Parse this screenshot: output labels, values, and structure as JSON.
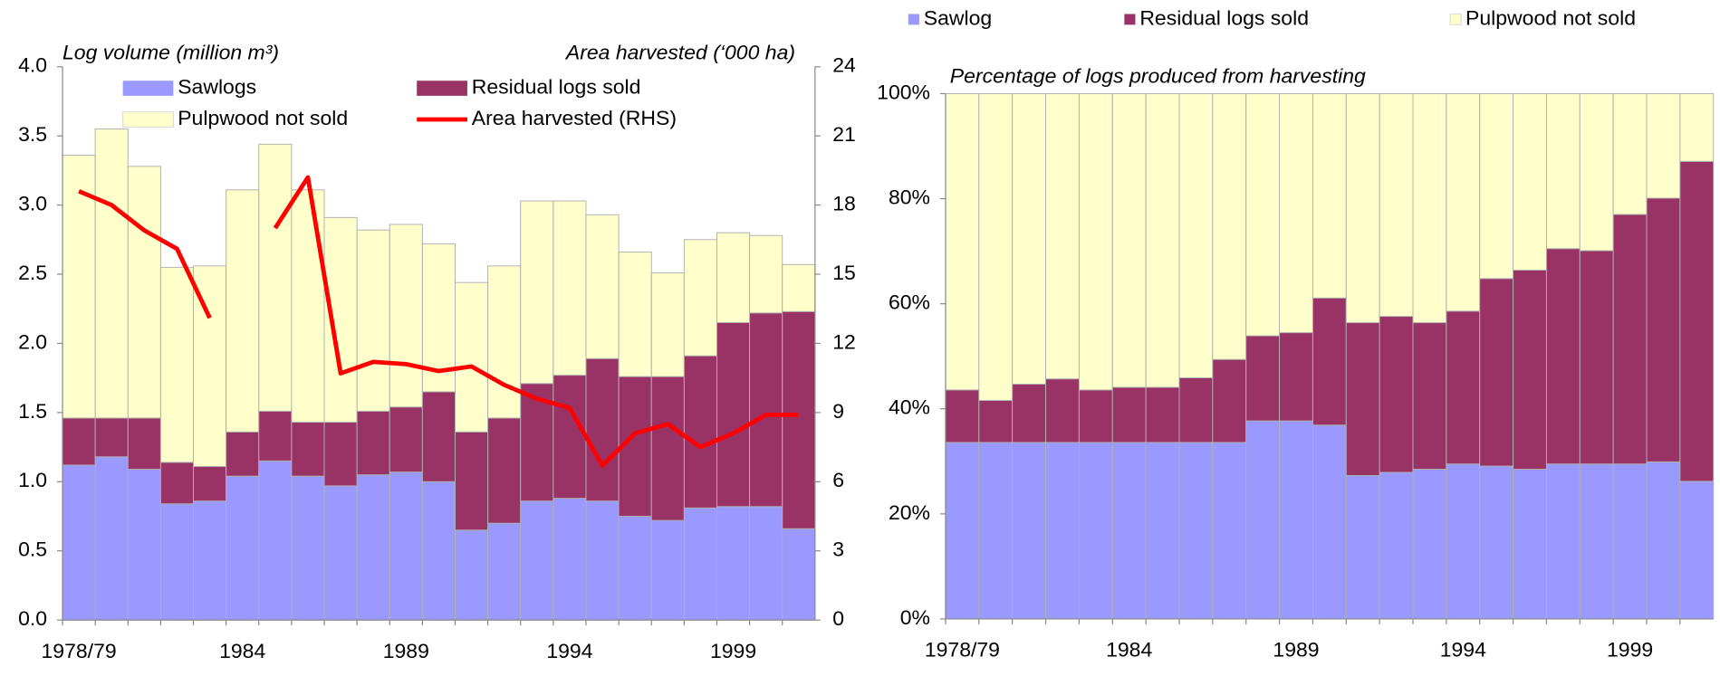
{
  "chart_data": [
    {
      "type": "bar",
      "stacked": true,
      "y_label": "Log volume (million m³)",
      "y2_label": "Area harvested (‘000 ha)",
      "categories": [
        "1978/79",
        null,
        null,
        null,
        null,
        "1984",
        null,
        null,
        null,
        null,
        "1989",
        null,
        null,
        null,
        null,
        "1994",
        null,
        null,
        null,
        null,
        "1999",
        null,
        null
      ],
      "ylim": [
        0,
        4
      ],
      "yticks": [
        {
          "value": 0,
          "label": "0.0"
        },
        0.5,
        {
          "value": 1,
          "label": "1.0"
        },
        1.5,
        {
          "value": 2,
          "label": "2.0"
        },
        2.5,
        {
          "value": 3,
          "label": "3.0"
        },
        3.5,
        {
          "value": 4,
          "label": "4.0"
        }
      ],
      "y2lim": [
        0,
        24
      ],
      "y2ticks": [
        0,
        3,
        6,
        9,
        12,
        15,
        18,
        21,
        24
      ],
      "series": [
        {
          "name": "Sawlogs",
          "color": "#9999ff",
          "values": [
            1.12,
            1.18,
            1.09,
            0.84,
            0.86,
            1.04,
            1.15,
            1.04,
            0.97,
            1.05,
            1.07,
            1.0,
            0.65,
            0.7,
            0.86,
            0.88,
            0.86,
            0.75,
            0.72,
            0.81,
            0.82,
            0.82,
            0.66
          ]
        },
        {
          "name": "Residual logs sold",
          "color": "#993366",
          "values": [
            0.34,
            0.28,
            0.37,
            0.3,
            0.25,
            0.32,
            0.36,
            0.39,
            0.46,
            0.46,
            0.47,
            0.65,
            0.71,
            0.76,
            0.85,
            0.89,
            1.03,
            1.01,
            1.04,
            1.1,
            1.33,
            1.4,
            1.57
          ]
        },
        {
          "name": "Pulpwood not sold",
          "color": "#ffffcc",
          "values": [
            1.9,
            2.09,
            1.82,
            1.41,
            1.45,
            1.75,
            1.93,
            1.68,
            1.48,
            1.31,
            1.32,
            1.07,
            1.08,
            1.1,
            1.32,
            1.26,
            1.04,
            0.9,
            0.75,
            0.84,
            0.65,
            0.56,
            0.34
          ]
        },
        {
          "name": "Area harvested (RHS)",
          "color": "#ff0000",
          "axis": "y2",
          "values": [
            18.6,
            18.0,
            16.9,
            16.1,
            13.1,
            null,
            17.0,
            19.2,
            10.7,
            11.2,
            11.1,
            10.8,
            11.0,
            10.2,
            9.6,
            9.2,
            6.7,
            8.1,
            8.5,
            7.5,
            8.1,
            8.9,
            8.9
          ]
        }
      ]
    },
    {
      "type": "bar",
      "stacked": true,
      "title": "Percentage of logs produced from harvesting",
      "categories": [
        "1978/79",
        null,
        null,
        null,
        null,
        "1984",
        null,
        null,
        null,
        null,
        "1989",
        null,
        null,
        null,
        null,
        "1994",
        null,
        null,
        null,
        null,
        "1999",
        null,
        null
      ],
      "ylim": [
        0,
        100
      ],
      "yticks": [
        {
          "value": 0,
          "label": "0%"
        },
        {
          "value": 20,
          "label": "20%"
        },
        {
          "value": 40,
          "label": "40%"
        },
        {
          "value": 60,
          "label": "60%"
        },
        {
          "value": 80,
          "label": "80%"
        },
        {
          "value": 100,
          "label": "100%"
        }
      ],
      "series": [
        {
          "name": "Sawlog",
          "color": "#9999ff",
          "values": [
            33.6,
            33.6,
            33.6,
            33.6,
            33.6,
            33.6,
            33.6,
            33.6,
            33.6,
            37.7,
            37.7,
            36.9,
            27.3,
            27.9,
            28.5,
            29.5,
            29.1,
            28.5,
            29.5,
            29.5,
            29.5,
            29.9,
            26.2
          ]
        },
        {
          "name": "Residual logs sold",
          "color": "#993366",
          "values": [
            10.0,
            8.0,
            11.1,
            12.1,
            10.0,
            10.5,
            10.5,
            12.3,
            15.8,
            16.2,
            16.8,
            24.2,
            29.1,
            29.7,
            27.9,
            29.1,
            35.7,
            37.9,
            41.0,
            40.6,
            47.5,
            50.2,
            60.9
          ]
        },
        {
          "name": "Pulpwood not sold",
          "color": "#ffffcc",
          "values": [
            56.4,
            58.4,
            55.3,
            54.3,
            56.4,
            55.9,
            55.9,
            54.1,
            50.6,
            46.1,
            45.5,
            38.9,
            43.6,
            42.4,
            43.6,
            41.4,
            35.2,
            33.6,
            29.5,
            29.9,
            23.0,
            19.9,
            12.9
          ]
        }
      ]
    }
  ]
}
